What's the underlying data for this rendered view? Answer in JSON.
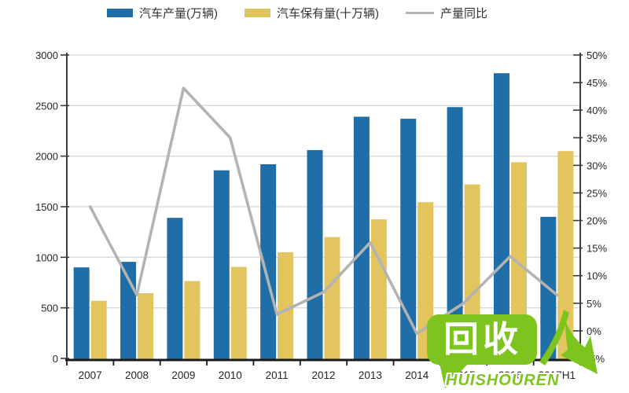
{
  "legend": {
    "items": [
      {
        "label": "汽车产量(万辆)",
        "swatch": "bar",
        "color": "#1F6EA7"
      },
      {
        "label": "汽车保有量(十万辆)",
        "swatch": "bar",
        "color": "#E3C55F"
      },
      {
        "label": "产量同比",
        "swatch": "line",
        "color": "#B3B3B3"
      }
    ]
  },
  "watermark": {
    "logo_text": "回收",
    "brand_text": "HUISHOUREN",
    "color": "#7DC41E"
  },
  "chart_data": {
    "type": "bar+line",
    "title": "",
    "legend_position": "top",
    "grid": "horizontal",
    "categories": [
      "2007",
      "2008",
      "2009",
      "2010",
      "2011",
      "2012",
      "2013",
      "2014",
      "2015",
      "2016",
      "2017H1"
    ],
    "series": [
      {
        "name": "汽车产量(万辆)",
        "type": "bar",
        "axis": "left",
        "color": "#1F6EA7",
        "values": [
          900,
          955,
          1390,
          1860,
          1920,
          2060,
          2390,
          2370,
          2485,
          2820,
          1400
        ]
      },
      {
        "name": "汽车保有量(十万辆)",
        "type": "bar",
        "axis": "left",
        "color": "#E3C55F",
        "values": [
          570,
          645,
          765,
          905,
          1050,
          1200,
          1375,
          1545,
          1720,
          1940,
          2050
        ]
      },
      {
        "name": "产量同比",
        "type": "line",
        "axis": "right",
        "color": "#B3B3B3",
        "values": [
          22.5,
          6.5,
          44,
          35,
          3,
          7,
          16,
          -0.5,
          5,
          13.5,
          6.5
        ]
      }
    ],
    "left_axis": {
      "min": 0,
      "max": 3000,
      "step": 500,
      "tick_labels": [
        "0",
        "500",
        "1000",
        "1500",
        "2000",
        "2500",
        "3000"
      ]
    },
    "right_axis": {
      "min": -5,
      "max": 50,
      "step": 5,
      "tick_labels": [
        "-5%",
        "0%",
        "5%",
        "10%",
        "15%",
        "20%",
        "25%",
        "30%",
        "35%",
        "40%",
        "45%",
        "50%"
      ]
    }
  }
}
